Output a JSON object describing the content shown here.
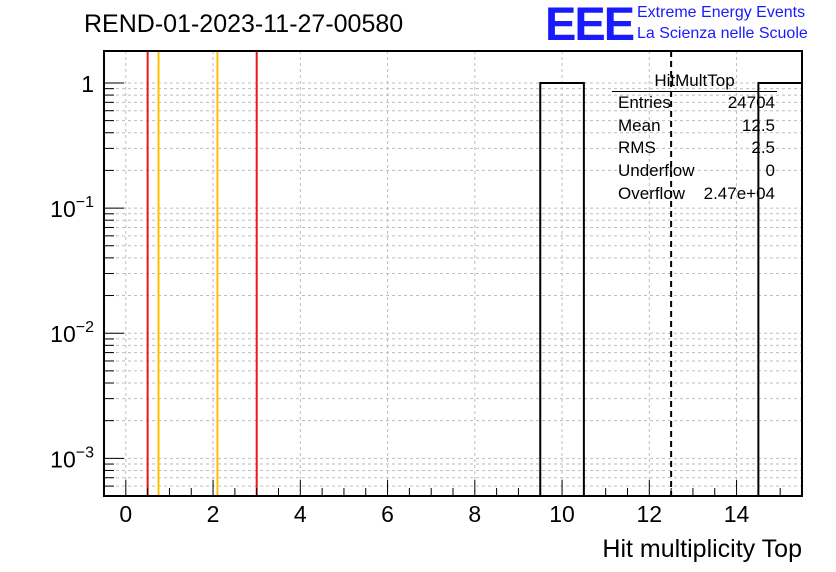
{
  "header": {
    "run_title": "REND-01-2023-11-27-00580",
    "logo_text": "EEE",
    "logo_line1": "Extreme Energy Events",
    "logo_line2": "La Scienza nelle Scuole",
    "brand_color": "#1a1aff"
  },
  "chart_data": {
    "type": "bar",
    "title": "REND-01-2023-11-27-00580",
    "xlabel": "Hit multiplicity Top",
    "ylabel": "",
    "y_scale": "log",
    "xlim": [
      -0.5,
      15.5
    ],
    "ylim": [
      0.0005,
      1.8
    ],
    "grid": true,
    "x_ticks": [
      "0",
      "2",
      "4",
      "6",
      "8",
      "10",
      "12",
      "14"
    ],
    "y_ticks": [
      {
        "mantissa": "1",
        "exponent": ""
      },
      {
        "mantissa": "10",
        "exponent": "−1"
      },
      {
        "mantissa": "10",
        "exponent": "−2"
      },
      {
        "mantissa": "10",
        "exponent": "−3"
      }
    ],
    "bins": [
      {
        "x_low": 9.5,
        "x_high": 10.5,
        "value": 1
      },
      {
        "x_low": 14.5,
        "x_high": 15.5,
        "value": 1
      }
    ],
    "reference_lines": [
      {
        "x": 0.5,
        "color": "#e8191b"
      },
      {
        "x": 0.75,
        "color": "#ffc000"
      },
      {
        "x": 2.1,
        "color": "#ffc000"
      },
      {
        "x": 3.0,
        "color": "#e8191b"
      },
      {
        "x": 12.5,
        "color": "#000000",
        "dashed": true
      }
    ],
    "stats_box": {
      "title": "HitMultTop",
      "rows": [
        {
          "label": "Entries",
          "value": "24704"
        },
        {
          "label": "Mean",
          "value": "12.5"
        },
        {
          "label": "RMS",
          "value": "2.5"
        },
        {
          "label": "Underflow",
          "value": "0"
        },
        {
          "label": "Overflow",
          "value": "2.47e+04"
        }
      ]
    }
  }
}
